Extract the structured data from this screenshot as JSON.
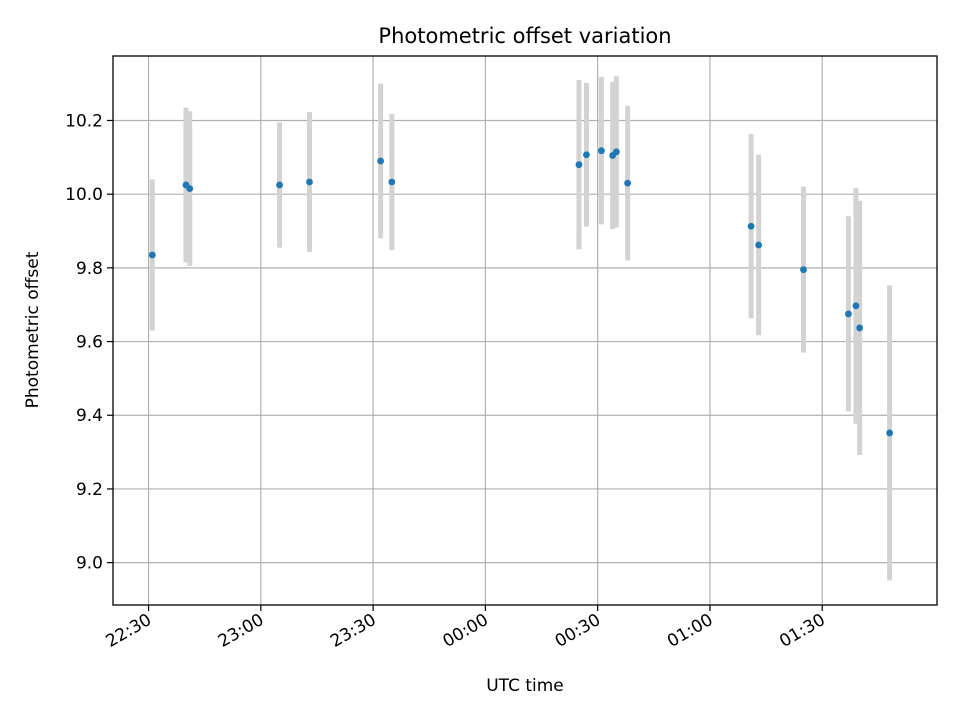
{
  "chart_data": {
    "type": "scatter",
    "title": "Photometric offset variation",
    "xlabel": "UTC time",
    "ylabel": "Photometric offset",
    "grid": true,
    "x_tick_labels": [
      "22:30",
      "23:00",
      "23:30",
      "00:00",
      "00:30",
      "01:00",
      "01:30"
    ],
    "y_tick_labels": [
      "9.0",
      "9.2",
      "9.4",
      "9.6",
      "9.8",
      "10.0",
      "10.2"
    ],
    "xlim": [
      "22:20:30",
      "02:00:40"
    ],
    "ylim": [
      8.885,
      10.375
    ],
    "colors": {
      "point": "#1f77b4",
      "errorbar": "#d3d3d3",
      "grid": "#b0b0b0"
    },
    "series": [
      {
        "points": [
          {
            "x": "22:31",
            "y": 9.835,
            "err": 0.205
          },
          {
            "x": "22:40",
            "y": 10.025,
            "err": 0.21
          },
          {
            "x": "22:41",
            "y": 10.015,
            "err": 0.21
          },
          {
            "x": "23:05",
            "y": 10.025,
            "err": 0.17
          },
          {
            "x": "23:13",
            "y": 10.033,
            "err": 0.19
          },
          {
            "x": "23:32",
            "y": 10.09,
            "err": 0.21
          },
          {
            "x": "23:35",
            "y": 10.033,
            "err": 0.185
          },
          {
            "x": "00:25",
            "y": 10.08,
            "err": 0.23
          },
          {
            "x": "00:27",
            "y": 10.107,
            "err": 0.195
          },
          {
            "x": "00:31",
            "y": 10.118,
            "err": 0.2
          },
          {
            "x": "00:34",
            "y": 10.105,
            "err": 0.2
          },
          {
            "x": "00:35",
            "y": 10.115,
            "err": 0.205
          },
          {
            "x": "00:38",
            "y": 10.03,
            "err": 0.21
          },
          {
            "x": "01:11",
            "y": 9.913,
            "err": 0.25
          },
          {
            "x": "01:13",
            "y": 9.862,
            "err": 0.245
          },
          {
            "x": "01:25",
            "y": 9.795,
            "err": 0.225
          },
          {
            "x": "01:37",
            "y": 9.675,
            "err": 0.265
          },
          {
            "x": "01:39",
            "y": 9.697,
            "err": 0.32
          },
          {
            "x": "01:40",
            "y": 9.637,
            "err": 0.345
          },
          {
            "x": "01:48",
            "y": 9.352,
            "err": 0.4
          }
        ]
      }
    ]
  }
}
